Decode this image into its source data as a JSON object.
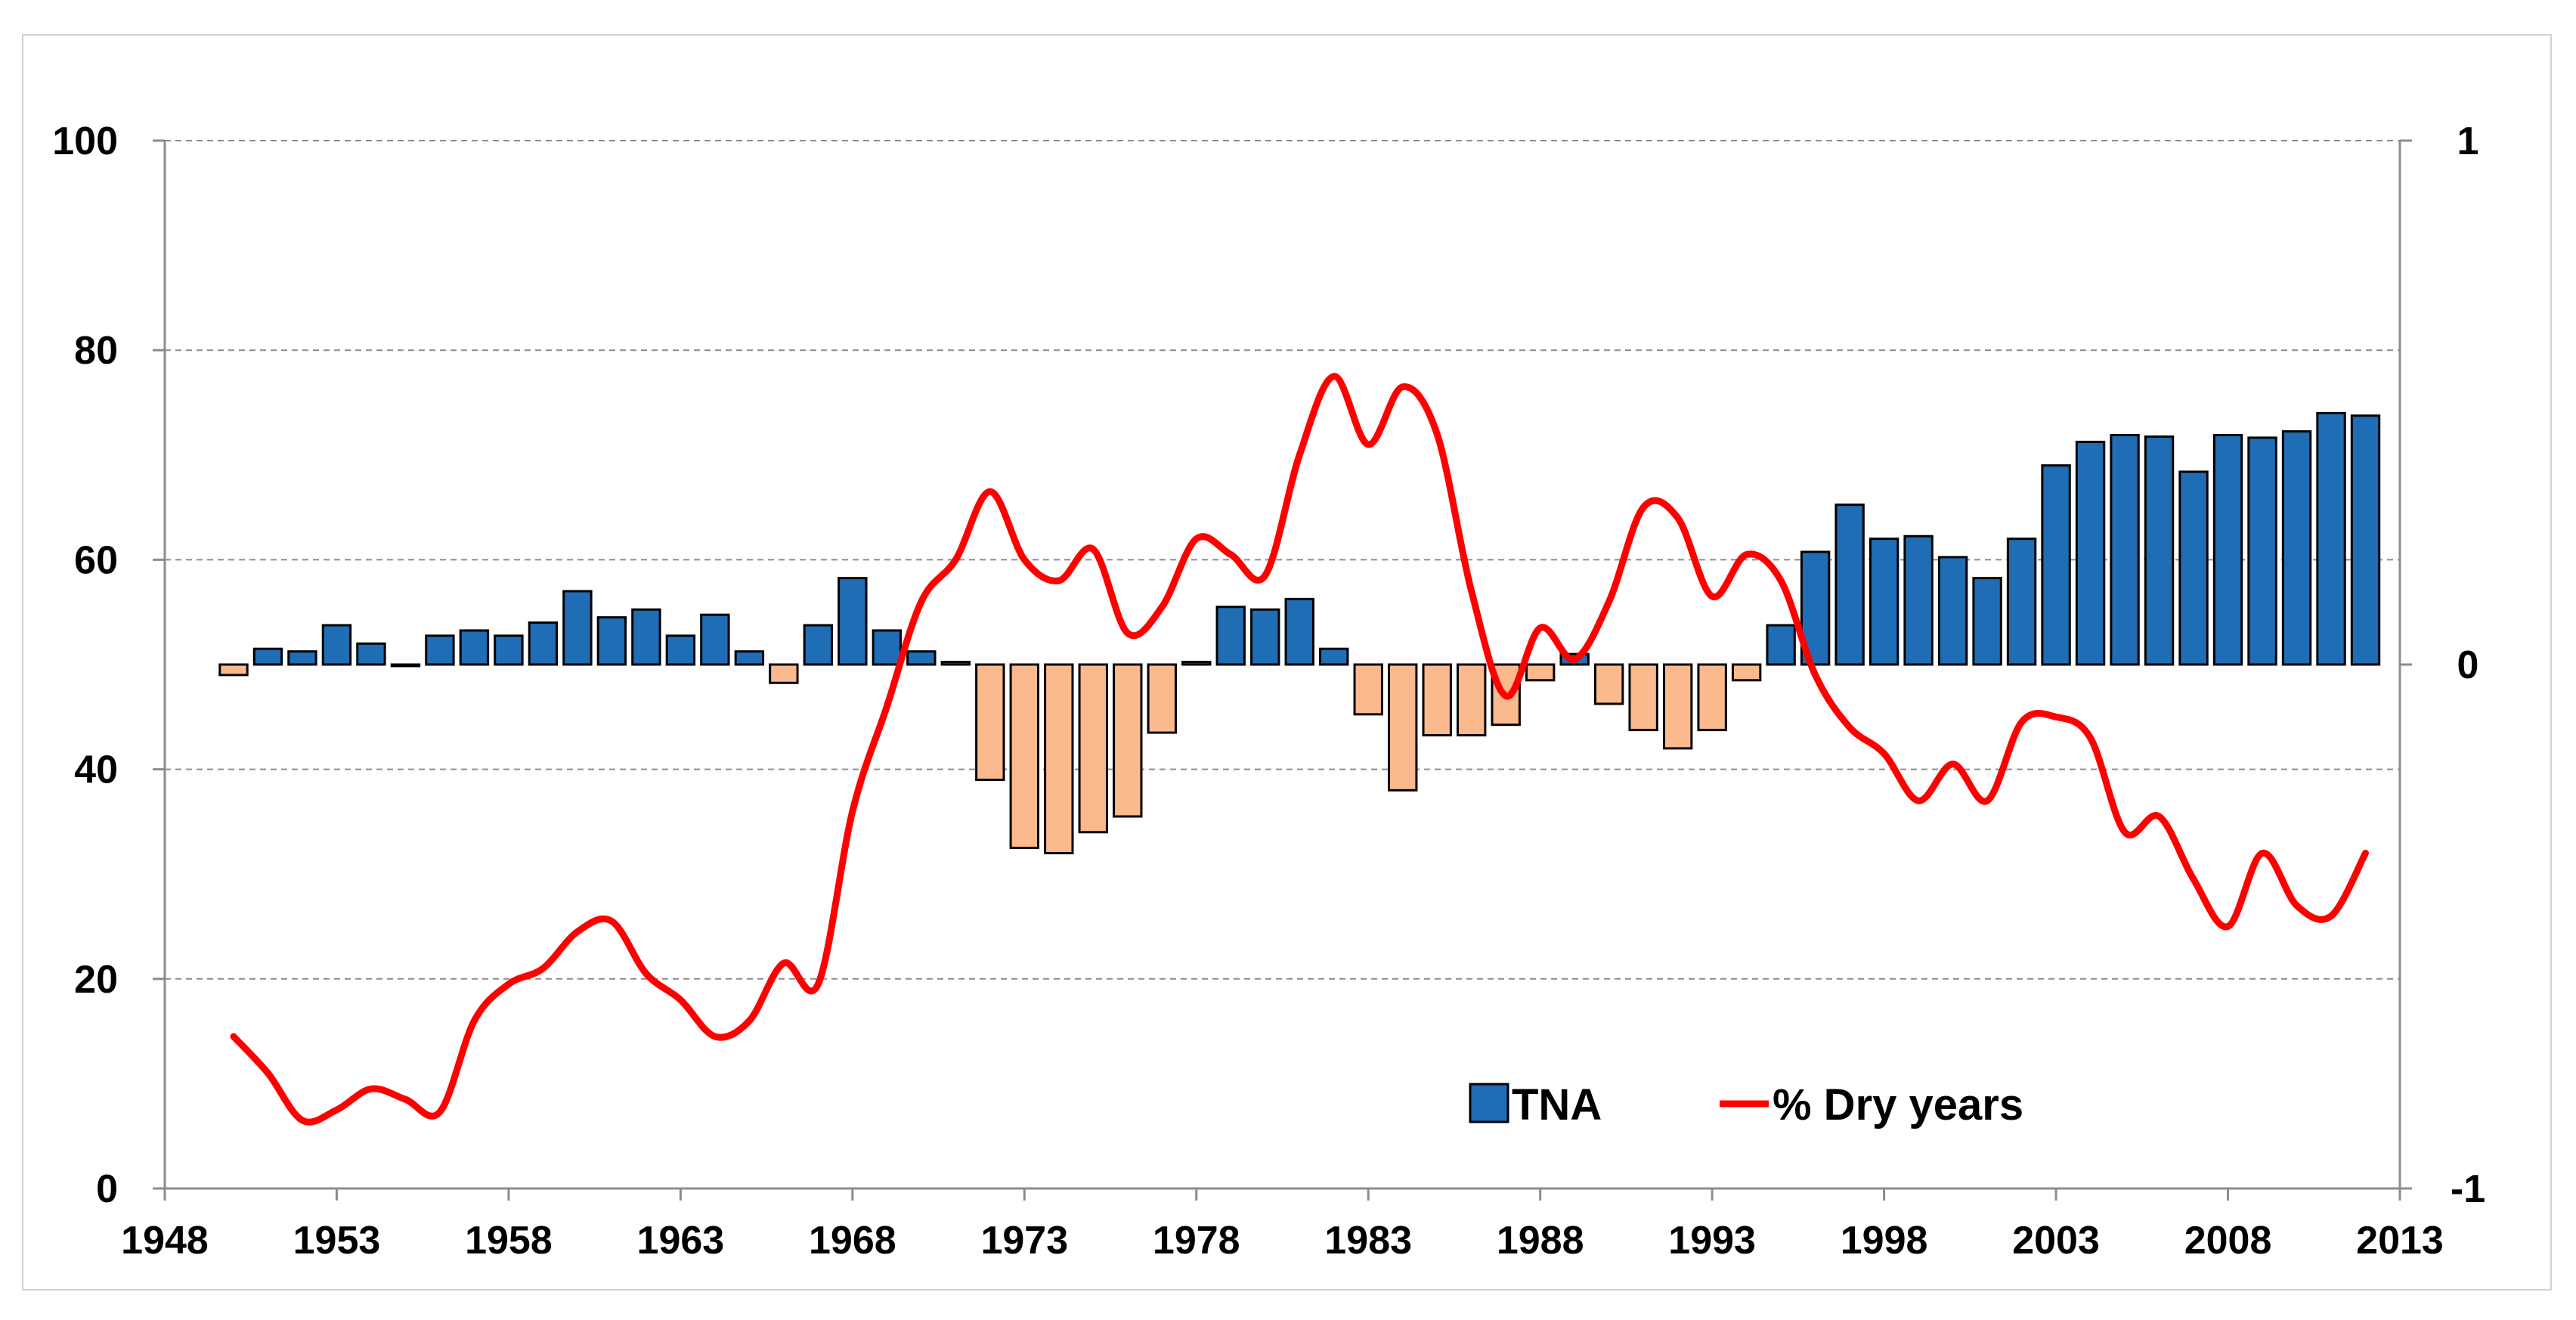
{
  "chart_data": {
    "type": "bar+line",
    "title": "",
    "xlabel": "",
    "ylabel_left": "",
    "ylabel_right": "",
    "x_ticks": [
      1948,
      1953,
      1958,
      1963,
      1968,
      1973,
      1978,
      1983,
      1988,
      1993,
      1998,
      2003,
      2008,
      2013
    ],
    "x_tick_labels": [
      "1948",
      "1953",
      "1958",
      "1963",
      "1968",
      "1973",
      "1978",
      "1983",
      "1988",
      "1993",
      "1998",
      "2003",
      "2008",
      "2013"
    ],
    "xlim": [
      1948,
      2013
    ],
    "ylim_left": [
      0,
      100
    ],
    "y_left_ticks": [
      0,
      20,
      40,
      60,
      80,
      100
    ],
    "y_left_tick_labels": [
      "0",
      "20",
      "40",
      "60",
      "80",
      "100"
    ],
    "ylim_right": [
      -1,
      1
    ],
    "y_right_ticks": [
      -1,
      0,
      1
    ],
    "y_right_tick_labels": [
      "-1",
      "0",
      "1"
    ],
    "gridlines": "horizontal dashed",
    "legend_position": "bottom-center",
    "colors": {
      "bar_positive": "#1f6db5",
      "bar_negative": "#fbb98e",
      "bar_outline": "#000000",
      "line": "#ff0000",
      "grid": "#8c8c8c",
      "axis": "#8c8c8c"
    },
    "series": [
      {
        "name": "TNA",
        "kind": "bar",
        "axis": "right",
        "x": [
          1950,
          1951,
          1952,
          1953,
          1954,
          1955,
          1956,
          1957,
          1958,
          1959,
          1960,
          1961,
          1962,
          1963,
          1964,
          1965,
          1966,
          1967,
          1968,
          1969,
          1970,
          1971,
          1972,
          1973,
          1974,
          1975,
          1976,
          1977,
          1978,
          1979,
          1980,
          1981,
          1982,
          1983,
          1984,
          1985,
          1986,
          1987,
          1988,
          1989,
          1990,
          1991,
          1992,
          1993,
          1994,
          1995,
          1996,
          1997,
          1998,
          1999,
          2000,
          2001,
          2002,
          2003,
          2004,
          2005,
          2006,
          2007,
          2008,
          2009,
          2010,
          2011,
          2012
        ],
        "values": [
          -0.02,
          0.03,
          0.025,
          0.075,
          0.04,
          0.0,
          0.055,
          0.065,
          0.055,
          0.08,
          0.14,
          0.09,
          0.105,
          0.055,
          0.095,
          0.025,
          -0.035,
          0.075,
          0.165,
          0.065,
          0.025,
          0.005,
          -0.22,
          -0.35,
          -0.36,
          -0.32,
          -0.29,
          -0.13,
          0.005,
          0.11,
          0.105,
          0.125,
          0.03,
          -0.095,
          -0.24,
          -0.135,
          -0.135,
          -0.115,
          -0.03,
          0.02,
          -0.075,
          -0.125,
          -0.16,
          -0.125,
          -0.03,
          0.075,
          0.215,
          0.305,
          0.24,
          0.245,
          0.205,
          0.165,
          0.24,
          0.38,
          0.425,
          0.438,
          0.435,
          0.368,
          0.438,
          0.433,
          0.445,
          0.48,
          0.475
        ]
      },
      {
        "name": "% Dry years",
        "kind": "line",
        "axis": "left",
        "x": [
          1950,
          1951,
          1952,
          1953,
          1954,
          1955,
          1956,
          1957,
          1958,
          1959,
          1960,
          1961,
          1962,
          1963,
          1964,
          1965,
          1966,
          1967,
          1968,
          1969,
          1970,
          1971,
          1972,
          1973,
          1974,
          1975,
          1976,
          1977,
          1978,
          1979,
          1980,
          1981,
          1982,
          1983,
          1984,
          1985,
          1986,
          1987,
          1988,
          1989,
          1990,
          1991,
          1992,
          1993,
          1994,
          1995,
          1996,
          1997,
          1998,
          1999,
          2000,
          2001,
          2002,
          2003,
          2004,
          2005,
          2006,
          2007,
          2008,
          2009,
          2010,
          2011,
          2012
        ],
        "values": [
          14.5,
          11,
          6.5,
          7.5,
          9.5,
          8.5,
          7.3,
          16,
          19.5,
          21,
          24.5,
          25.5,
          20.5,
          18,
          14.5,
          16,
          21.5,
          19.5,
          36,
          46,
          56,
          60,
          66.5,
          60,
          58,
          61,
          53,
          55.5,
          62,
          60.5,
          58.5,
          70,
          77.5,
          71,
          76.5,
          72,
          57,
          47,
          53.5,
          50.5,
          56,
          65,
          64,
          56.5,
          60.5,
          58,
          49,
          44,
          41.5,
          37,
          40.5,
          37,
          44.5,
          45,
          43,
          34,
          35.5,
          29.5,
          25,
          32,
          27,
          26,
          32
        ]
      }
    ],
    "legend": [
      {
        "label": "TNA",
        "marker": "square",
        "color": "#1f6db5"
      },
      {
        "label": "% Dry years",
        "marker": "line",
        "color": "#ff0000"
      }
    ]
  }
}
